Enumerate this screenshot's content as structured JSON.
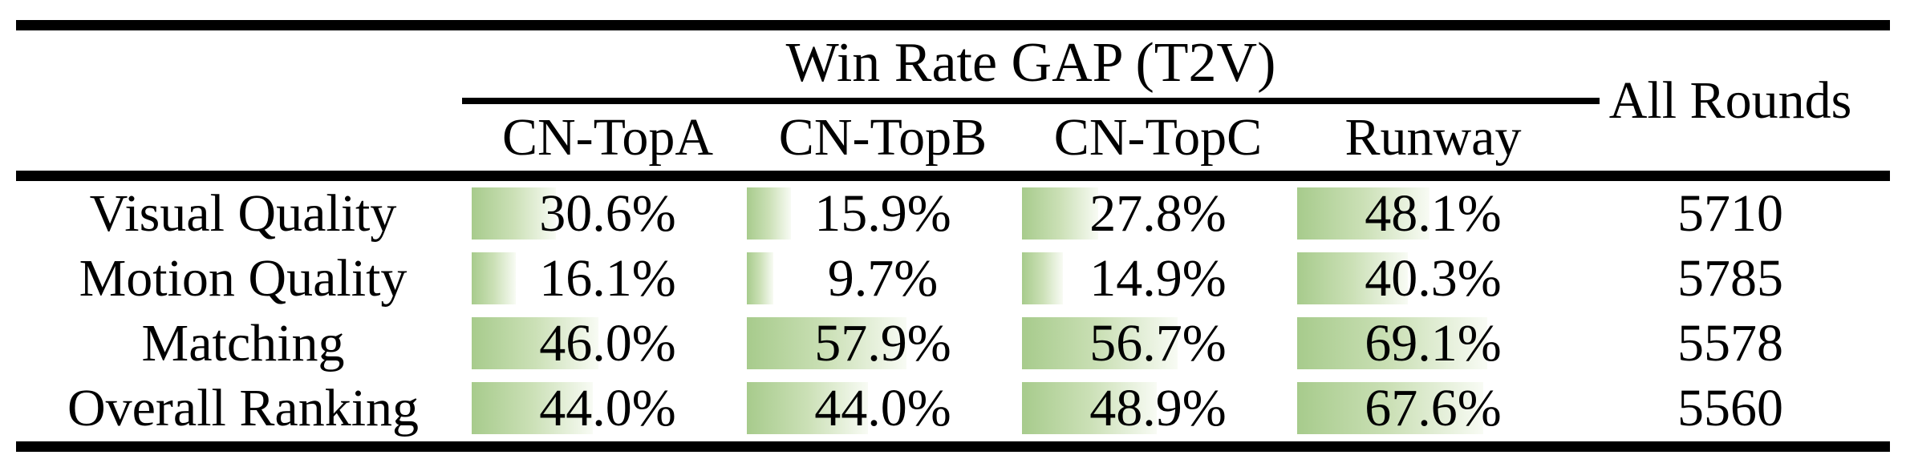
{
  "table": {
    "title": "Win Rate GAP (T2V)",
    "all_rounds_header": "All Rounds",
    "columns": [
      "CN-TopA",
      "CN-TopB",
      "CN-TopC",
      "Runway"
    ],
    "rows": [
      {
        "label": "Visual Quality",
        "cells": [
          {
            "text": "30.6%",
            "pct": 30.6
          },
          {
            "text": "15.9%",
            "pct": 15.9
          },
          {
            "text": "27.8%",
            "pct": 27.8
          },
          {
            "text": "48.1%",
            "pct": 48.1
          }
        ],
        "all_rounds": "5710"
      },
      {
        "label": "Motion Quality",
        "cells": [
          {
            "text": "16.1%",
            "pct": 16.1
          },
          {
            "text": "9.7%",
            "pct": 9.7
          },
          {
            "text": "14.9%",
            "pct": 14.9
          },
          {
            "text": "40.3%",
            "pct": 40.3
          }
        ],
        "all_rounds": "5785"
      },
      {
        "label": "Matching",
        "cells": [
          {
            "text": "46.0%",
            "pct": 46.0
          },
          {
            "text": "57.9%",
            "pct": 57.9
          },
          {
            "text": "56.7%",
            "pct": 56.7
          },
          {
            "text": "69.1%",
            "pct": 69.1
          }
        ],
        "all_rounds": "5578"
      },
      {
        "label": "Overall Ranking",
        "cells": [
          {
            "text": "44.0%",
            "pct": 44.0
          },
          {
            "text": "44.0%",
            "pct": 44.0
          },
          {
            "text": "48.9%",
            "pct": 48.9
          },
          {
            "text": "67.6%",
            "pct": 67.6
          }
        ],
        "all_rounds": "5560"
      }
    ],
    "colors": {
      "bar_gradient_start": "#a7cb8c",
      "bar_gradient_mid": "#cbe0b6",
      "bar_gradient_end": "#f8fbf4",
      "rule_color": "#000000",
      "text_color": "#000000"
    }
  },
  "chart_data": {
    "type": "table",
    "title": "Win Rate GAP (T2V)",
    "columns": [
      "",
      "CN-TopA",
      "CN-TopB",
      "CN-TopC",
      "Runway",
      "All Rounds"
    ],
    "rows": [
      [
        "Visual Quality",
        "30.6%",
        "15.9%",
        "27.8%",
        "48.1%",
        "5710"
      ],
      [
        "Motion Quality",
        "16.1%",
        "9.7%",
        "14.9%",
        "40.3%",
        "5785"
      ],
      [
        "Matching",
        "46.0%",
        "57.9%",
        "56.7%",
        "69.1%",
        "5578"
      ],
      [
        "Overall Ranking",
        "44.0%",
        "44.0%",
        "48.9%",
        "67.6%",
        "5560"
      ]
    ],
    "layout_hints": "Green horizontal bars inside percentage cells, left-aligned, width proportional to value (100% = full cell width); booktabs rules: thick top rule, thin cmidrule under spanning title across the four model columns, thick rule above data rows, thick bottom rule; All Rounds header vertically spans both header rows"
  }
}
